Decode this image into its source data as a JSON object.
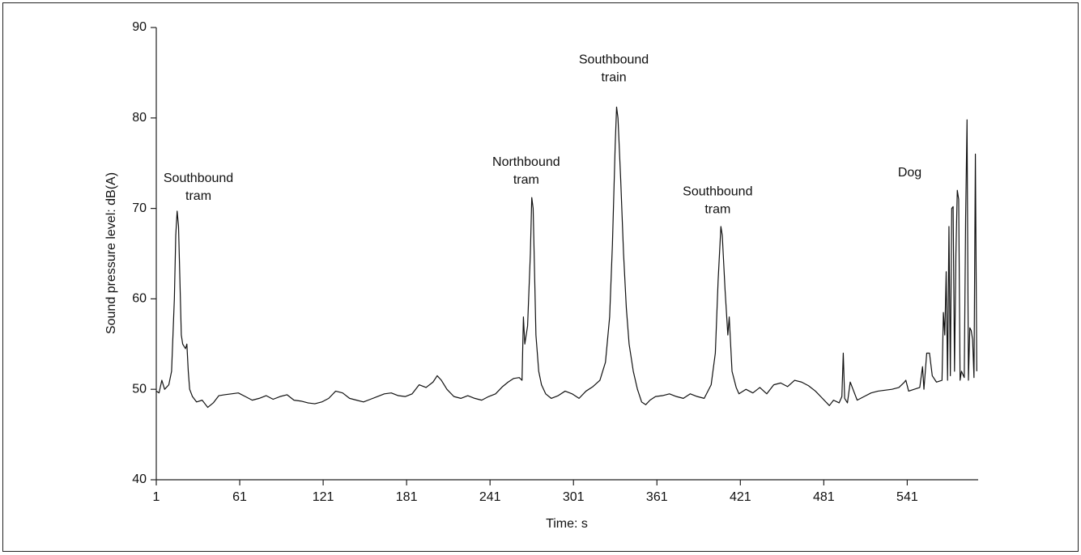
{
  "chart_data": {
    "type": "line",
    "x_label": "Time: s",
    "y_label": "Sound pressure level: dB(A)",
    "xlim": [
      1,
      592
    ],
    "ylim": [
      40,
      90
    ],
    "xticks": [
      1,
      61,
      121,
      181,
      241,
      301,
      361,
      421,
      481,
      541
    ],
    "yticks": [
      40,
      50,
      60,
      70,
      80,
      90
    ],
    "grid": false,
    "x": [
      1,
      3,
      5,
      7,
      10,
      12,
      14,
      15,
      16,
      17,
      18,
      19,
      20,
      22,
      23,
      24,
      25,
      27,
      30,
      34,
      38,
      42,
      46,
      50,
      55,
      60,
      65,
      70,
      75,
      80,
      85,
      90,
      95,
      100,
      105,
      110,
      115,
      120,
      125,
      130,
      135,
      140,
      145,
      150,
      155,
      160,
      165,
      170,
      175,
      180,
      185,
      190,
      195,
      200,
      203,
      206,
      210,
      215,
      220,
      225,
      230,
      235,
      240,
      245,
      250,
      254,
      258,
      262,
      264,
      265,
      266,
      268,
      270,
      271,
      272,
      273,
      274,
      276,
      278,
      281,
      285,
      290,
      295,
      300,
      305,
      310,
      315,
      320,
      324,
      327,
      329,
      331,
      332,
      333,
      335,
      337,
      339,
      341,
      344,
      347,
      350,
      353,
      356,
      360,
      365,
      370,
      375,
      380,
      385,
      390,
      395,
      400,
      403,
      405,
      407,
      408,
      410,
      412,
      413,
      415,
      418,
      420,
      425,
      430,
      435,
      440,
      445,
      450,
      455,
      460,
      465,
      470,
      475,
      480,
      485,
      488,
      492,
      494,
      495,
      496,
      498,
      500,
      502,
      505,
      510,
      515,
      520,
      525,
      530,
      535,
      539,
      540,
      542,
      546,
      550,
      552,
      553,
      555,
      557,
      559,
      562,
      566,
      567,
      568,
      569,
      570,
      571,
      572,
      573,
      574,
      575,
      576,
      577,
      578,
      579,
      580,
      582,
      583,
      584,
      585,
      586,
      587,
      588,
      589,
      590,
      591
    ],
    "series": [
      {
        "color": "#111111",
        "values": [
          49.8,
          49.6,
          51,
          50,
          50.5,
          52,
          60,
          67,
          69.7,
          68,
          62,
          56,
          55,
          54.5,
          55,
          52,
          50,
          49.2,
          48.6,
          48.8,
          48,
          48.5,
          49.3,
          49.4,
          49.5,
          49.6,
          49.2,
          48.8,
          49,
          49.3,
          48.9,
          49.2,
          49.4,
          48.8,
          48.7,
          48.5,
          48.4,
          48.6,
          49,
          49.8,
          49.6,
          49,
          48.8,
          48.6,
          48.9,
          49.2,
          49.5,
          49.6,
          49.3,
          49.2,
          49.5,
          50.5,
          50.2,
          50.8,
          51.5,
          51,
          50,
          49.2,
          49,
          49.3,
          49,
          48.8,
          49.2,
          49.5,
          50.3,
          50.8,
          51.2,
          51.3,
          51,
          58,
          55,
          57,
          65,
          71.2,
          70,
          63,
          56,
          52,
          50.5,
          49.5,
          49,
          49.3,
          49.8,
          49.5,
          49,
          49.8,
          50.3,
          51,
          53,
          58,
          66,
          77,
          81.2,
          80,
          73,
          65,
          59,
          55,
          52,
          50,
          48.6,
          48.3,
          48.8,
          49.2,
          49.3,
          49.5,
          49.2,
          49,
          49.5,
          49.2,
          49,
          50.5,
          54,
          62,
          68,
          67,
          61,
          56,
          58,
          52,
          50.2,
          49.5,
          50,
          49.6,
          50.2,
          49.5,
          50.5,
          50.7,
          50.3,
          51,
          50.8,
          50.4,
          49.8,
          49,
          48.2,
          48.8,
          48.5,
          49.2,
          54,
          49,
          48.5,
          50.8,
          50,
          48.8,
          49.2,
          49.6,
          49.8,
          49.9,
          50,
          50.2,
          50.8,
          51,
          49.8,
          50,
          50.2,
          52.5,
          50,
          54,
          54,
          51.5,
          50.8,
          51,
          58.5,
          56,
          63,
          51,
          68,
          51.5,
          70,
          70.2,
          52,
          65,
          72,
          71,
          51,
          52,
          51.3,
          69,
          79.8,
          51,
          56.8,
          56.5,
          55.5,
          51.3,
          76,
          52
        ]
      }
    ],
    "annotations": [
      {
        "text": [
          "Southbound",
          "tram"
        ],
        "x": 31.3,
        "y": 73.3
      },
      {
        "text": [
          "Northbound",
          "tram"
        ],
        "x": 267,
        "y": 75.1
      },
      {
        "text": [
          "Southbound",
          "train"
        ],
        "x": 330,
        "y": 86.4
      },
      {
        "text": [
          "Southbound",
          "tram"
        ],
        "x": 404.7,
        "y": 71.8
      },
      {
        "text": [
          "Dog"
        ],
        "x": 542.8,
        "y": 73.9
      }
    ]
  }
}
